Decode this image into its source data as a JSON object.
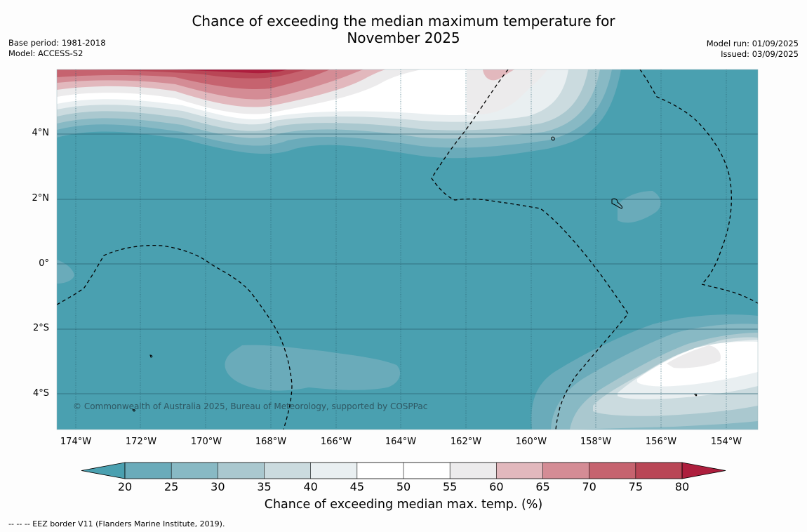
{
  "title_line1": "Chance of exceeding the median maximum temperature for",
  "title_line2": "November 2025",
  "base_period": "Base period: 1981-2018",
  "model": "Model: ACCESS-S2",
  "model_run": "Model run: 01/09/2025",
  "issued": "Issued: 03/09/2025",
  "copyright": "© Commonwealth of Australia 2025, Bureau of Meteorology, supported by COSPPac",
  "lat_labels": [
    "4°N",
    "2°N",
    "0°",
    "2°S",
    "4°S"
  ],
  "lon_labels": [
    "174°W",
    "172°W",
    "170°W",
    "168°W",
    "166°W",
    "164°W",
    "162°W",
    "160°W",
    "158°W",
    "156°W",
    "154°W"
  ],
  "colorbar": {
    "ticks": [
      "20",
      "25",
      "30",
      "35",
      "40",
      "45",
      "50",
      "55",
      "60",
      "65",
      "70",
      "75",
      "80"
    ],
    "colors": [
      "#4aa0b0",
      "#6aabba",
      "#88b9c4",
      "#aac8cf",
      "#cbdbdf",
      "#e9eff1",
      "#ffffff",
      "#ffffff",
      "#ecebec",
      "#e2b8bd",
      "#d48c95",
      "#c6636f",
      "#b94656",
      "#ad1e3d"
    ],
    "title": "Chance of exceeding median max. temp. (%)"
  },
  "footer": "--  --  -- EEZ border V11 (Flanders Marine Institute, 2019)."
}
